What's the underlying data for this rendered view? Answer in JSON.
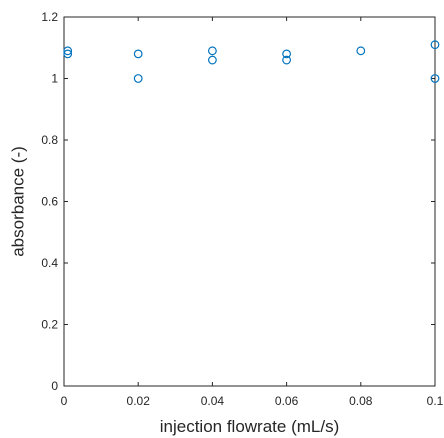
{
  "chart_data": {
    "type": "scatter",
    "title": "",
    "xlabel": "injection flowrate (mL/s)",
    "ylabel": "absorbance (-)",
    "xlim": [
      0,
      0.1
    ],
    "ylim": [
      0,
      1.2
    ],
    "x_ticks": [
      "0",
      "0.02",
      "0.04",
      "0.06",
      "0.08",
      "0.1"
    ],
    "y_ticks": [
      "0",
      "0.2",
      "0.4",
      "0.6",
      "0.8",
      "1",
      "1.2"
    ],
    "grid": false,
    "marker": "circle",
    "series_color": "#0072BD",
    "axis_color": "#262626",
    "series": [
      {
        "points": [
          {
            "x": 0.001,
            "y": 1.09
          },
          {
            "x": 0.001,
            "y": 1.08
          },
          {
            "x": 0.02,
            "y": 1.08
          },
          {
            "x": 0.02,
            "y": 1.0
          },
          {
            "x": 0.04,
            "y": 1.09
          },
          {
            "x": 0.04,
            "y": 1.06
          },
          {
            "x": 0.06,
            "y": 1.08
          },
          {
            "x": 0.06,
            "y": 1.06
          },
          {
            "x": 0.08,
            "y": 1.09
          },
          {
            "x": 0.1,
            "y": 1.11
          },
          {
            "x": 0.1,
            "y": 1.0
          }
        ]
      }
    ]
  }
}
